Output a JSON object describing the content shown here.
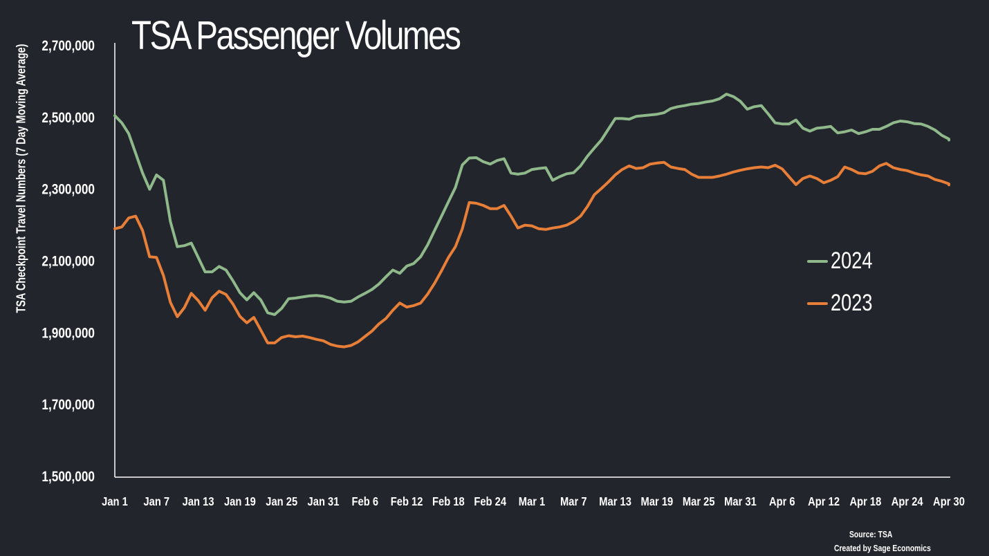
{
  "chart_data": {
    "type": "line",
    "title": "TSA Passenger Volumes",
    "xlabel": "",
    "ylabel": "TSA Checkpoint Travel Numbers (7 Day Moving Average)",
    "ylim": [
      1500000,
      2700000
    ],
    "yticks": [
      1500000,
      1700000,
      1900000,
      2100000,
      2300000,
      2500000,
      2700000
    ],
    "ytick_labels": [
      "1,500,000",
      "1,700,000",
      "1,900,000",
      "2,100,000",
      "2,300,000",
      "2,500,000",
      "2,700,000"
    ],
    "xlim": [
      1,
      121
    ],
    "xticks": [
      1,
      7,
      13,
      19,
      25,
      31,
      37,
      43,
      49,
      55,
      61,
      67,
      73,
      79,
      85,
      91,
      97,
      103,
      109,
      115,
      121
    ],
    "xtick_labels": [
      "Jan 1",
      "Jan 7",
      "Jan 13",
      "Jan 19",
      "Jan 25",
      "Jan 31",
      "Feb 6",
      "Feb 12",
      "Feb 18",
      "Feb 24",
      "Mar 1",
      "Mar 7",
      "Mar 13",
      "Mar 19",
      "Mar 25",
      "Mar 31",
      "Apr 6",
      "Apr 12",
      "Apr 18",
      "Apr 24",
      "Apr 30"
    ],
    "grid": false,
    "legend_position": "right",
    "series": [
      {
        "name": "2024",
        "color": "#8fb98b",
        "points": [
          [
            1,
            2505000
          ],
          [
            2,
            2485000
          ],
          [
            3,
            2455000
          ],
          [
            4,
            2400000
          ],
          [
            5,
            2345000
          ],
          [
            6,
            2300000
          ],
          [
            7,
            2340000
          ],
          [
            8,
            2325000
          ],
          [
            9,
            2210000
          ],
          [
            10,
            2140000
          ],
          [
            11,
            2143000
          ],
          [
            12,
            2150000
          ],
          [
            13,
            2110000
          ],
          [
            14,
            2070000
          ],
          [
            15,
            2070000
          ],
          [
            16,
            2085000
          ],
          [
            17,
            2075000
          ],
          [
            18,
            2045000
          ],
          [
            19,
            2012000
          ],
          [
            20,
            1992000
          ],
          [
            21,
            2012000
          ],
          [
            22,
            1992000
          ],
          [
            23,
            1956000
          ],
          [
            24,
            1951000
          ],
          [
            25,
            1968000
          ],
          [
            26,
            1995000
          ],
          [
            27,
            1997000
          ],
          [
            28,
            2000000
          ],
          [
            29,
            2003000
          ],
          [
            30,
            2004000
          ],
          [
            31,
            2002000
          ],
          [
            32,
            1997000
          ],
          [
            33,
            1988000
          ],
          [
            34,
            1986000
          ],
          [
            35,
            1988000
          ],
          [
            36,
            2000000
          ],
          [
            37,
            2010000
          ],
          [
            38,
            2021000
          ],
          [
            39,
            2036000
          ],
          [
            40,
            2056000
          ],
          [
            41,
            2075000
          ],
          [
            42,
            2066000
          ],
          [
            43,
            2086000
          ],
          [
            44,
            2093000
          ],
          [
            45,
            2112000
          ],
          [
            46,
            2145000
          ],
          [
            47,
            2185000
          ],
          [
            48,
            2225000
          ],
          [
            49,
            2265000
          ],
          [
            50,
            2305000
          ],
          [
            51,
            2368000
          ],
          [
            52,
            2387000
          ],
          [
            53,
            2388000
          ],
          [
            54,
            2377000
          ],
          [
            55,
            2370000
          ],
          [
            56,
            2380000
          ],
          [
            57,
            2385000
          ],
          [
            58,
            2345000
          ],
          [
            59,
            2342000
          ],
          [
            60,
            2345000
          ],
          [
            61,
            2355000
          ],
          [
            62,
            2358000
          ],
          [
            63,
            2360000
          ],
          [
            64,
            2325000
          ],
          [
            65,
            2335000
          ],
          [
            66,
            2343000
          ],
          [
            67,
            2346000
          ],
          [
            68,
            2365000
          ],
          [
            69,
            2392000
          ],
          [
            70,
            2415000
          ],
          [
            71,
            2437000
          ],
          [
            72,
            2467000
          ],
          [
            73,
            2497000
          ],
          [
            74,
            2497000
          ],
          [
            75,
            2495000
          ],
          [
            76,
            2503000
          ],
          [
            77,
            2505000
          ],
          [
            78,
            2507000
          ],
          [
            79,
            2509000
          ],
          [
            80,
            2513000
          ],
          [
            81,
            2525000
          ],
          [
            82,
            2530000
          ],
          [
            83,
            2533000
          ],
          [
            84,
            2537000
          ],
          [
            85,
            2539000
          ],
          [
            86,
            2543000
          ],
          [
            87,
            2546000
          ],
          [
            88,
            2552000
          ],
          [
            89,
            2565000
          ],
          [
            90,
            2558000
          ],
          [
            91,
            2545000
          ],
          [
            92,
            2523000
          ],
          [
            93,
            2530000
          ],
          [
            94,
            2533000
          ],
          [
            95,
            2510000
          ],
          [
            96,
            2485000
          ],
          [
            97,
            2482000
          ],
          [
            98,
            2482000
          ],
          [
            99,
            2493000
          ],
          [
            100,
            2470000
          ],
          [
            101,
            2462000
          ],
          [
            102,
            2470000
          ],
          [
            103,
            2472000
          ],
          [
            104,
            2475000
          ],
          [
            105,
            2457000
          ],
          [
            106,
            2460000
          ],
          [
            107,
            2465000
          ],
          [
            108,
            2455000
          ],
          [
            109,
            2460000
          ],
          [
            110,
            2467000
          ],
          [
            111,
            2467000
          ],
          [
            112,
            2475000
          ],
          [
            113,
            2485000
          ],
          [
            114,
            2490000
          ],
          [
            115,
            2488000
          ],
          [
            116,
            2483000
          ],
          [
            117,
            2482000
          ],
          [
            118,
            2475000
          ],
          [
            119,
            2465000
          ],
          [
            120,
            2450000
          ],
          [
            121,
            2440000
          ],
          [
            122,
            2437000
          ],
          [
            123,
            2438000
          ]
        ]
      },
      {
        "name": "2023",
        "color": "#e87f38",
        "points": [
          [
            1,
            2190000
          ],
          [
            2,
            2195000
          ],
          [
            3,
            2220000
          ],
          [
            4,
            2225000
          ],
          [
            5,
            2185000
          ],
          [
            6,
            2112000
          ],
          [
            7,
            2110000
          ],
          [
            8,
            2060000
          ],
          [
            9,
            1985000
          ],
          [
            10,
            1945000
          ],
          [
            11,
            1970000
          ],
          [
            12,
            2010000
          ],
          [
            13,
            1990000
          ],
          [
            14,
            1963000
          ],
          [
            15,
            1998000
          ],
          [
            16,
            2016000
          ],
          [
            17,
            2007000
          ],
          [
            18,
            1980000
          ],
          [
            19,
            1946000
          ],
          [
            20,
            1928000
          ],
          [
            21,
            1943000
          ],
          [
            22,
            1908000
          ],
          [
            23,
            1872000
          ],
          [
            24,
            1872000
          ],
          [
            25,
            1887000
          ],
          [
            26,
            1892000
          ],
          [
            27,
            1889000
          ],
          [
            28,
            1891000
          ],
          [
            29,
            1887000
          ],
          [
            30,
            1882000
          ],
          [
            31,
            1878000
          ],
          [
            32,
            1868000
          ],
          [
            33,
            1863000
          ],
          [
            34,
            1861000
          ],
          [
            35,
            1865000
          ],
          [
            36,
            1875000
          ],
          [
            37,
            1890000
          ],
          [
            38,
            1905000
          ],
          [
            39,
            1925000
          ],
          [
            40,
            1940000
          ],
          [
            41,
            1963000
          ],
          [
            42,
            1983000
          ],
          [
            43,
            1972000
          ],
          [
            44,
            1976000
          ],
          [
            45,
            1983000
          ],
          [
            46,
            2008000
          ],
          [
            47,
            2038000
          ],
          [
            48,
            2073000
          ],
          [
            49,
            2110000
          ],
          [
            50,
            2140000
          ],
          [
            51,
            2190000
          ],
          [
            52,
            2263000
          ],
          [
            53,
            2261000
          ],
          [
            54,
            2255000
          ],
          [
            55,
            2246000
          ],
          [
            56,
            2246000
          ],
          [
            57,
            2255000
          ],
          [
            58,
            2225000
          ],
          [
            59,
            2192000
          ],
          [
            60,
            2200000
          ],
          [
            61,
            2198000
          ],
          [
            62,
            2190000
          ],
          [
            63,
            2188000
          ],
          [
            64,
            2192000
          ],
          [
            65,
            2195000
          ],
          [
            66,
            2200000
          ],
          [
            67,
            2210000
          ],
          [
            68,
            2225000
          ],
          [
            69,
            2252000
          ],
          [
            70,
            2285000
          ],
          [
            71,
            2302000
          ],
          [
            72,
            2320000
          ],
          [
            73,
            2340000
          ],
          [
            74,
            2355000
          ],
          [
            75,
            2365000
          ],
          [
            76,
            2358000
          ],
          [
            77,
            2360000
          ],
          [
            78,
            2370000
          ],
          [
            79,
            2373000
          ],
          [
            80,
            2375000
          ],
          [
            81,
            2362000
          ],
          [
            82,
            2358000
          ],
          [
            83,
            2355000
          ],
          [
            84,
            2342000
          ],
          [
            85,
            2333000
          ],
          [
            86,
            2333000
          ],
          [
            87,
            2333000
          ],
          [
            88,
            2337000
          ],
          [
            89,
            2342000
          ],
          [
            90,
            2348000
          ],
          [
            91,
            2353000
          ],
          [
            92,
            2357000
          ],
          [
            93,
            2360000
          ],
          [
            94,
            2362000
          ],
          [
            95,
            2360000
          ],
          [
            96,
            2367000
          ],
          [
            97,
            2357000
          ],
          [
            98,
            2335000
          ],
          [
            99,
            2313000
          ],
          [
            100,
            2330000
          ],
          [
            101,
            2337000
          ],
          [
            102,
            2330000
          ],
          [
            103,
            2318000
          ],
          [
            104,
            2325000
          ],
          [
            105,
            2335000
          ],
          [
            106,
            2362000
          ],
          [
            107,
            2355000
          ],
          [
            108,
            2345000
          ],
          [
            109,
            2343000
          ],
          [
            110,
            2350000
          ],
          [
            111,
            2365000
          ],
          [
            112,
            2372000
          ],
          [
            113,
            2360000
          ],
          [
            114,
            2355000
          ],
          [
            115,
            2352000
          ],
          [
            116,
            2345000
          ],
          [
            117,
            2340000
          ],
          [
            118,
            2337000
          ],
          [
            119,
            2327000
          ],
          [
            120,
            2322000
          ],
          [
            121,
            2315000
          ],
          [
            122,
            2315000
          ],
          [
            123,
            2312000
          ]
        ]
      }
    ]
  },
  "legend": {
    "items": [
      {
        "label": "2024",
        "color": "#8fb98b"
      },
      {
        "label": "2023",
        "color": "#e87f38"
      }
    ]
  },
  "footer": {
    "source": "Source: TSA",
    "credit": "Created by Sage Economics"
  }
}
